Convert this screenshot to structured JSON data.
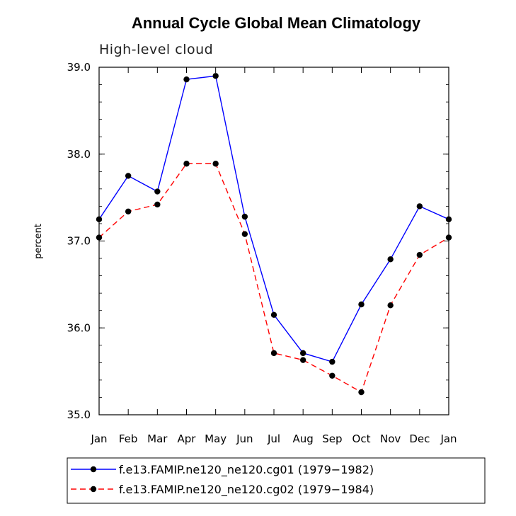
{
  "chart_data": {
    "type": "line",
    "title": "Annual Cycle Global Mean Climatology",
    "subtitle": "High-level cloud",
    "xlabel": "",
    "ylabel": "percent",
    "categories": [
      "Jan",
      "Feb",
      "Mar",
      "Apr",
      "May",
      "Jun",
      "Jul",
      "Aug",
      "Sep",
      "Oct",
      "Nov",
      "Dec",
      "Jan"
    ],
    "ylim": [
      35.0,
      39.0
    ],
    "yticks": [
      35.0,
      36.0,
      37.0,
      38.0,
      39.0
    ],
    "ytick_labels": [
      "35.0",
      "36.0",
      "37.0",
      "38.0",
      "39.0"
    ],
    "legend_position": "bottom",
    "series": [
      {
        "name": "f.e13.FAMIP.ne120_ne120.cg01 (1979−1982)",
        "color": "#0000ff",
        "line_style": "solid",
        "values": [
          37.25,
          37.75,
          37.57,
          38.86,
          38.9,
          37.28,
          36.15,
          35.71,
          35.61,
          36.27,
          36.79,
          37.4,
          37.25
        ]
      },
      {
        "name": "f.e13.FAMIP.ne120_ne120.cg02 (1979−1984)",
        "color": "#ff0000",
        "line_style": "dashed",
        "values": [
          37.04,
          37.34,
          37.42,
          37.89,
          37.89,
          37.08,
          35.71,
          35.63,
          35.45,
          35.26,
          36.26,
          36.84,
          37.04
        ]
      }
    ]
  }
}
